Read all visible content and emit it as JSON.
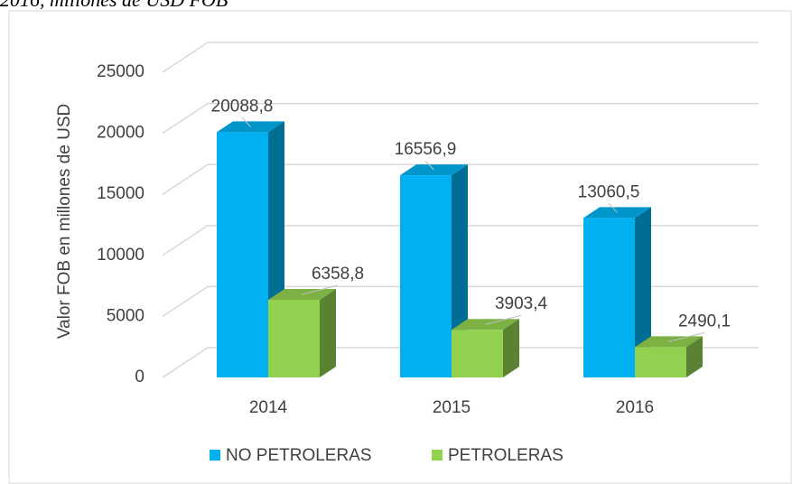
{
  "caption": "2016, millones de USD FOB",
  "chart_data": {
    "type": "bar3d",
    "categories": [
      "2014",
      "2015",
      "2016"
    ],
    "series": [
      {
        "name": "NO PETROLERAS",
        "color": "#00b0f0",
        "values": [
          20088.8,
          16556.9,
          13060.5
        ],
        "value_labels": [
          "20088,8",
          "16556,9",
          "13060,5"
        ]
      },
      {
        "name": "PETROLERAS",
        "color": "#92d050",
        "values": [
          6358.8,
          3903.4,
          2490.1
        ],
        "value_labels": [
          "6358,8",
          "3903,4",
          "2490,1"
        ]
      }
    ],
    "ylabel": "Valor FOB en millones de USD",
    "ylim": [
      0,
      25000
    ],
    "yticks": [
      0,
      5000,
      10000,
      15000,
      20000,
      25000
    ],
    "grid": true,
    "legend": "bottom"
  }
}
